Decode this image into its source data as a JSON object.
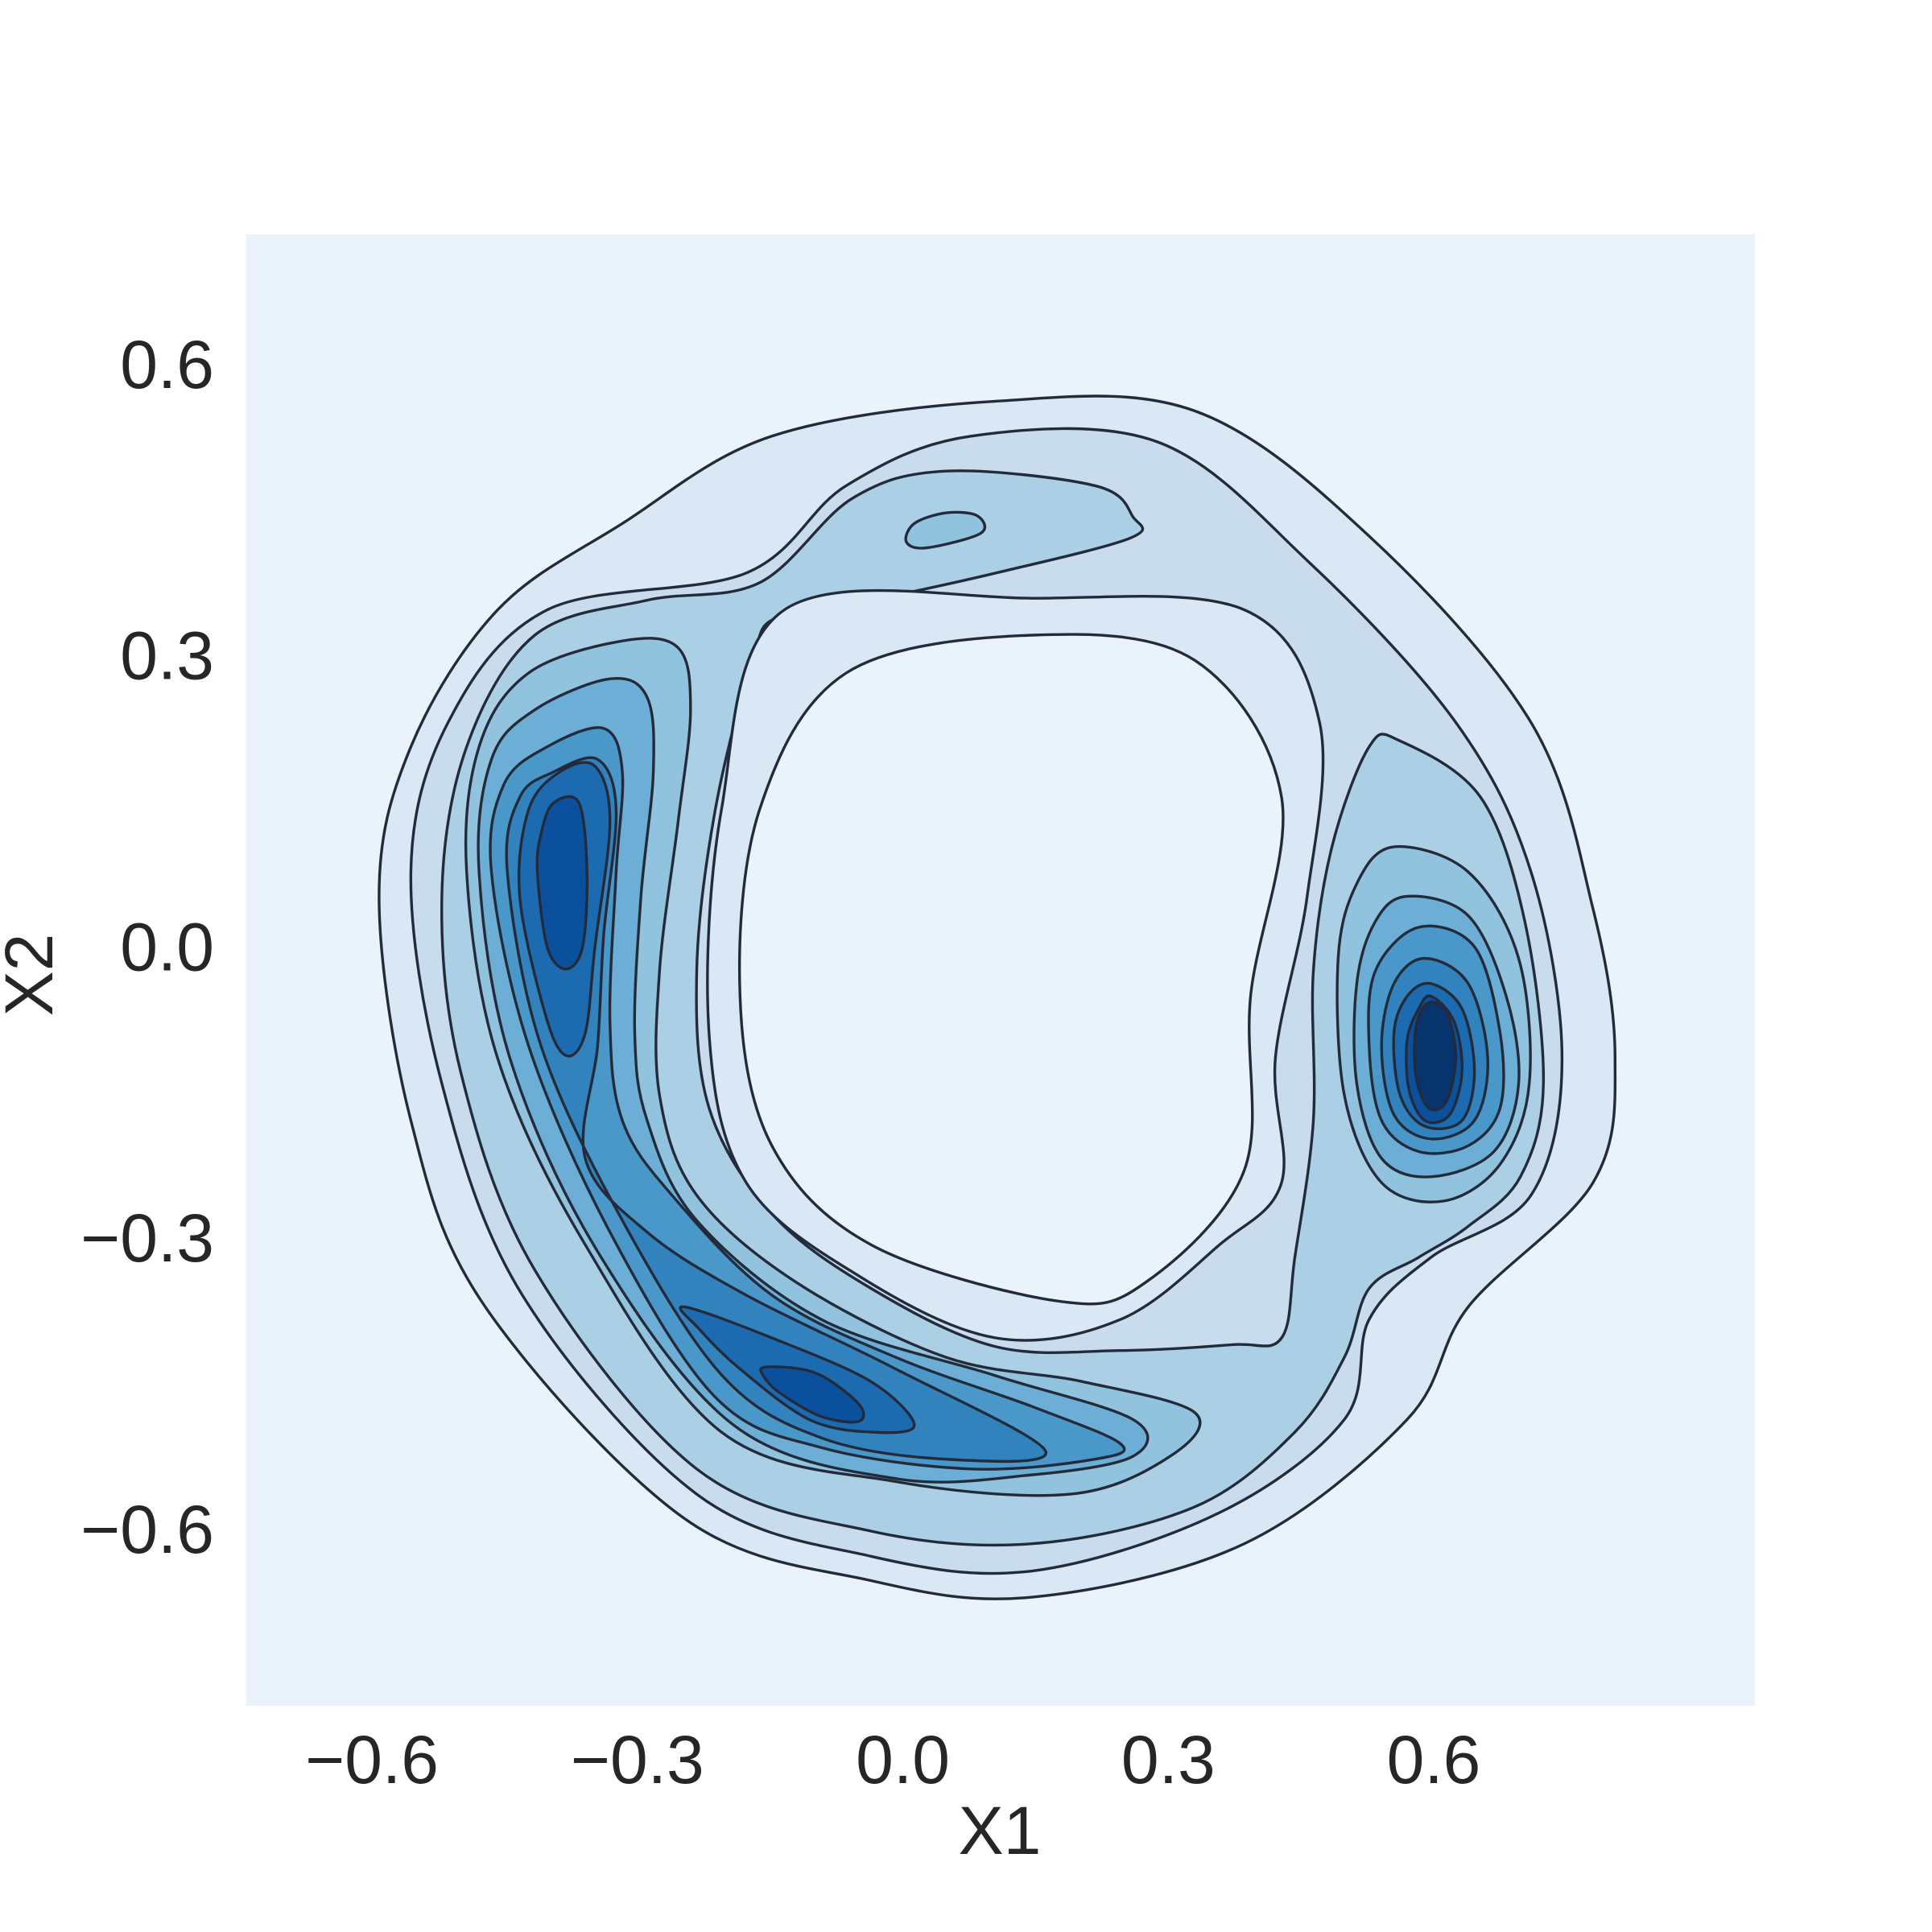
{
  "chart_data": {
    "type": "kde_contour",
    "xlabel": "X1",
    "ylabel": "X2",
    "xlim": [
      -0.742,
      0.963
    ],
    "ylim": [
      -0.776,
      0.74
    ],
    "xticks": [
      {
        "value": -0.6,
        "label": "−0.6"
      },
      {
        "value": -0.3,
        "label": "−0.3"
      },
      {
        "value": 0,
        "label": "0.0"
      },
      0.3,
      0.6
    ],
    "yticks": [
      {
        "value": -0.6,
        "label": "−0.6"
      },
      {
        "value": -0.3,
        "label": "−0.3"
      },
      {
        "value": 0,
        "label": "0.0"
      },
      0.3,
      0.6
    ],
    "facecolor": "#eaf2fb",
    "line_color": "#232b3a",
    "levels": [
      {
        "color": "#dae8f5",
        "polygons": [
          {
            "x": [
              0.105,
              0.33,
              0.527,
              0.71,
              0.78,
              0.805,
              0.78,
              0.639,
              0.57,
              0.386,
              0.147,
              -0.036,
              -0.247,
              -0.472,
              -0.556,
              -0.592,
              -0.556,
              -0.458,
              -0.317,
              -0.148
            ],
            "y": [
              0.568,
              0.558,
              0.429,
              0.237,
              0.045,
              -0.109,
              -0.237,
              -0.365,
              -0.481,
              -0.609,
              -0.664,
              -0.647,
              -0.583,
              -0.365,
              -0.173,
              0.058,
              0.212,
              0.353,
              0.442,
              0.532
            ]
          }
        ],
        "holes": [
          {
            "x": [
              0.147,
              0.33,
              0.428,
              0.393,
              0.386,
              0.274,
              0.175,
              -0.036,
              -0.148,
              -0.184,
              -0.162,
              -0.064
            ],
            "y": [
              0.327,
              0.301,
              0.16,
              -0.045,
              -0.224,
              -0.34,
              -0.359,
              -0.301,
              -0.199,
              -0.045,
              0.147,
              0.288
            ]
          }
        ]
      },
      {
        "color": "#c9dcee",
        "polygons": [
          {
            "x": [
              0.077,
              0.288,
              0.457,
              0.625,
              0.71,
              0.745,
              0.71,
              0.597,
              0.527,
              0.499,
              0.358,
              0.147,
              -0.036,
              -0.233,
              -0.43,
              -0.521,
              -0.556,
              -0.514,
              -0.402,
              -0.177,
              -0.064
            ],
            "y": [
              0.532,
              0.526,
              0.404,
              0.237,
              0.083,
              -0.109,
              -0.25,
              -0.314,
              -0.378,
              -0.481,
              -0.577,
              -0.637,
              -0.622,
              -0.558,
              -0.353,
              -0.135,
              0.083,
              0.237,
              0.353,
              0.391,
              0.481
            ]
          }
        ],
        "holes": [
          {
            "x": [
              0.147,
              0.386,
              0.471,
              0.457,
              0.421,
              0.428,
              0.358,
              0.246,
              0.105,
              -0.05,
              -0.177,
              -0.219,
              -0.205,
              -0.134
            ],
            "y": [
              0.365,
              0.353,
              0.237,
              0.058,
              -0.109,
              -0.237,
              -0.301,
              -0.378,
              -0.397,
              -0.333,
              -0.237,
              -0.083,
              0.147,
              0.353
            ]
          }
        ]
      },
      {
        "color": "#abd0e6",
        "polygons": [
          {
            "x": [
              -0.416,
              -0.289,
              -0.162,
              -0.057,
              0.049,
              0.217,
              0.26,
              0.257,
              0.105,
              -0.036,
              -0.141,
              -0.17,
              -0.212,
              -0.233,
              -0.219,
              -0.148,
              -0.036,
              0.105,
              0.246,
              0.372,
              0.428,
              0.443,
              0.464,
              0.464,
              0.485,
              0.527,
              0.562,
              0.653,
              0.703,
              0.724,
              0.698,
              0.639,
              0.583,
              0.527,
              0.499,
              0.443,
              0.33,
              0.147,
              -0.036,
              -0.233,
              -0.416,
              -0.5,
              -0.521,
              -0.493
            ],
            "y": [
              0.327,
              0.363,
              0.381,
              0.468,
              0.496,
              0.481,
              0.449,
              0.427,
              0.391,
              0.363,
              0.346,
              0.301,
              0.147,
              -0.019,
              -0.16,
              -0.269,
              -0.346,
              -0.406,
              -0.41,
              -0.404,
              -0.397,
              -0.314,
              -0.173,
              -0.019,
              0.109,
              0.212,
              0.218,
              0.16,
              0.032,
              -0.135,
              -0.231,
              -0.282,
              -0.314,
              -0.346,
              -0.417,
              -0.494,
              -0.571,
              -0.609,
              -0.596,
              -0.532,
              -0.327,
              -0.122,
              0.058,
              0.212
            ]
          }
        ]
      },
      {
        "color": "#91c3de",
        "polygons": [
          {
            "x": [
              0.013,
              0.049,
              0.084,
              0.088,
              0.027,
              0.004
            ],
            "y": [
              0.442,
              0.453,
              0.45,
              0.432,
              0.417,
              0.423
            ]
          },
          {
            "x": [
              0.555,
              0.639,
              0.696,
              0.708,
              0.675,
              0.611,
              0.541,
              0.499,
              0.492,
              0.513
            ],
            "y": [
              0.109,
              0.083,
              -0.006,
              -0.135,
              -0.218,
              -0.256,
              -0.237,
              -0.147,
              -0.006,
              0.071
            ]
          },
          {
            "x": [
              -0.423,
              -0.317,
              -0.254,
              -0.24,
              -0.254,
              -0.275,
              -0.275,
              -0.233,
              -0.12,
              0.049,
              0.203,
              0.33,
              0.302,
              0.189,
              -0.008,
              -0.205,
              -0.359,
              -0.458,
              -0.493,
              -0.479
            ],
            "y": [
              0.288,
              0.321,
              0.314,
              0.25,
              0.135,
              -0.019,
              -0.147,
              -0.25,
              -0.34,
              -0.417,
              -0.442,
              -0.474,
              -0.519,
              -0.558,
              -0.545,
              -0.494,
              -0.301,
              -0.109,
              0.083,
              0.212
            ]
          }
        ]
      },
      {
        "color": "#6caed6",
        "polygons": [
          {
            "x": [
              0.57,
              0.639,
              0.682,
              0.696,
              0.668,
              0.597,
              0.541,
              0.513,
              0.513,
              0.534
            ],
            "y": [
              0.058,
              0.038,
              -0.045,
              -0.135,
              -0.205,
              -0.231,
              -0.212,
              -0.135,
              -0.032,
              0.032
            ]
          },
          {
            "x": [
              -0.416,
              -0.331,
              -0.289,
              -0.282,
              -0.296,
              -0.303,
              -0.289,
              -0.233,
              -0.092,
              0.105,
              0.26,
              0.26,
              0.147,
              -0.008,
              -0.191,
              -0.345,
              -0.444,
              -0.479,
              -0.465
            ],
            "y": [
              0.25,
              0.282,
              0.263,
              0.186,
              0.058,
              -0.083,
              -0.173,
              -0.276,
              -0.378,
              -0.436,
              -0.481,
              -0.519,
              -0.538,
              -0.542,
              -0.487,
              -0.308,
              -0.109,
              0.083,
              0.199
            ]
          }
        ]
      },
      {
        "color": "#4a97c9",
        "polygons": [
          {
            "x": [
              0.583,
              0.646,
              0.675,
              0.675,
              0.639,
              0.583,
              0.541,
              0.527,
              0.534
            ],
            "y": [
              0.026,
              0.006,
              -0.083,
              -0.16,
              -0.199,
              -0.205,
              -0.173,
              -0.096,
              -0.019
            ]
          },
          {
            "x": [
              -0.402,
              -0.338,
              -0.317,
              -0.324,
              -0.331,
              -0.317,
              -0.261,
              -0.148,
              -0.008,
              0.147,
              0.246,
              0.217,
              0.077,
              -0.092,
              -0.212,
              -0.331,
              -0.423,
              -0.465,
              -0.451
            ],
            "y": [
              0.212,
              0.231,
              0.186,
              0.083,
              -0.071,
              -0.173,
              -0.25,
              -0.353,
              -0.417,
              -0.468,
              -0.506,
              -0.522,
              -0.532,
              -0.51,
              -0.458,
              -0.288,
              -0.096,
              0.083,
              0.173
            ]
          }
        ]
      },
      {
        "color": "#3282be",
        "polygons": [
          {
            "x": [
              0.59,
              0.639,
              0.661,
              0.646,
              0.597,
              0.555,
              0.541,
              0.555
            ],
            "y": [
              -0.006,
              -0.032,
              -0.109,
              -0.173,
              -0.192,
              -0.167,
              -0.096,
              -0.032
            ]
          },
          {
            "x": [
              -0.395,
              -0.345,
              -0.324,
              -0.338,
              -0.345,
              -0.359,
              -0.289,
              -0.177,
              -0.008,
              0.161,
              0.049,
              -0.092,
              -0.204,
              -0.317,
              -0.409,
              -0.447,
              -0.433
            ],
            "y": [
              0.186,
              0.199,
              0.147,
              0.019,
              -0.096,
              -0.212,
              -0.288,
              -0.353,
              -0.429,
              -0.513,
              -0.522,
              -0.5,
              -0.436,
              -0.276,
              -0.096,
              0.083,
              0.16
            ]
          }
        ]
      },
      {
        "color": "#1c6aaf",
        "polygons": [
          {
            "x": [
              0.597,
              0.632,
              0.646,
              0.632,
              0.59,
              0.562,
              0.555,
              0.57
            ],
            "y": [
              -0.032,
              -0.058,
              -0.122,
              -0.173,
              -0.179,
              -0.147,
              -0.083,
              -0.045
            ]
          },
          {
            "x": [
              -0.388,
              -0.348,
              -0.331,
              -0.348,
              -0.359,
              -0.381,
              -0.404,
              -0.433,
              -0.423
            ],
            "y": [
              0.186,
              0.192,
              0.135,
              0.006,
              -0.083,
              -0.106,
              -0.064,
              0.058,
              0.147
            ]
          },
          {
            "x": [
              -0.247,
              -0.148,
              -0.036,
              0.013,
              -0.036,
              -0.106,
              -0.184,
              -0.23
            ],
            "y": [
              -0.365,
              -0.397,
              -0.442,
              -0.487,
              -0.494,
              -0.481,
              -0.429,
              -0.388
            ]
          }
        ]
      },
      {
        "color": "#0b509c",
        "polygons": [
          {
            "x": [
              0.597,
              0.623,
              0.632,
              0.618,
              0.59,
              0.572,
              0.57,
              0.583
            ],
            "y": [
              -0.045,
              -0.071,
              -0.122,
              -0.167,
              -0.173,
              -0.141,
              -0.09,
              -0.058
            ]
          },
          {
            "x": [
              -0.395,
              -0.366,
              -0.357,
              -0.362,
              -0.381,
              -0.402,
              -0.413,
              -0.409
            ],
            "y": [
              0.154,
              0.154,
              0.083,
              0.006,
              -0.017,
              0.006,
              0.083,
              0.122
            ]
          },
          {
            "x": [
              -0.155,
              -0.099,
              -0.05,
              -0.05,
              -0.092,
              -0.137,
              -0.157
            ],
            "y": [
              -0.427,
              -0.433,
              -0.465,
              -0.483,
              -0.478,
              -0.455,
              -0.437
            ]
          }
        ]
      },
      {
        "color": "#08346e",
        "polygons": [
          {
            "x": [
              0.6,
              0.616,
              0.625,
              0.614,
              0.594,
              0.58,
              0.579,
              0.587
            ],
            "y": [
              -0.051,
              -0.064,
              -0.109,
              -0.154,
              -0.16,
              -0.128,
              -0.083,
              -0.058
            ]
          }
        ]
      }
    ]
  }
}
